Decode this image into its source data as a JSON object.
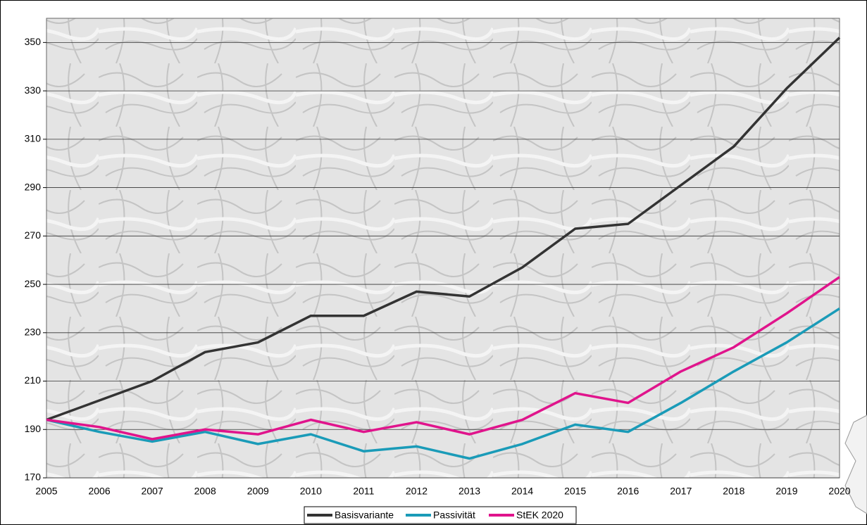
{
  "chart_data": {
    "type": "line",
    "categories": [
      "2005",
      "2006",
      "2007",
      "2008",
      "2009",
      "2010",
      "2011",
      "2012",
      "2013",
      "2014",
      "2015",
      "2016",
      "2017",
      "2018",
      "2019",
      "2020"
    ],
    "series": [
      {
        "name": "Basisvariante",
        "color": "#333333",
        "values": [
          194,
          202,
          210,
          222,
          226,
          237,
          237,
          247,
          245,
          257,
          273,
          275,
          291,
          307,
          331,
          352
        ]
      },
      {
        "name": "Passivität",
        "color": "#1a9bb8",
        "values": [
          194,
          189,
          185,
          189,
          184,
          188,
          181,
          183,
          178,
          184,
          192,
          189,
          201,
          214,
          226,
          240
        ]
      },
      {
        "name": "StEK 2020",
        "color": "#e0148c",
        "values": [
          194,
          191,
          186,
          190,
          188,
          194,
          189,
          193,
          188,
          194,
          205,
          201,
          214,
          224,
          238,
          253
        ]
      }
    ],
    "ylim": [
      170,
      360
    ],
    "yticks": [
      170,
      190,
      210,
      230,
      250,
      270,
      290,
      310,
      330,
      350
    ],
    "grid": true,
    "legend": "bottom"
  }
}
